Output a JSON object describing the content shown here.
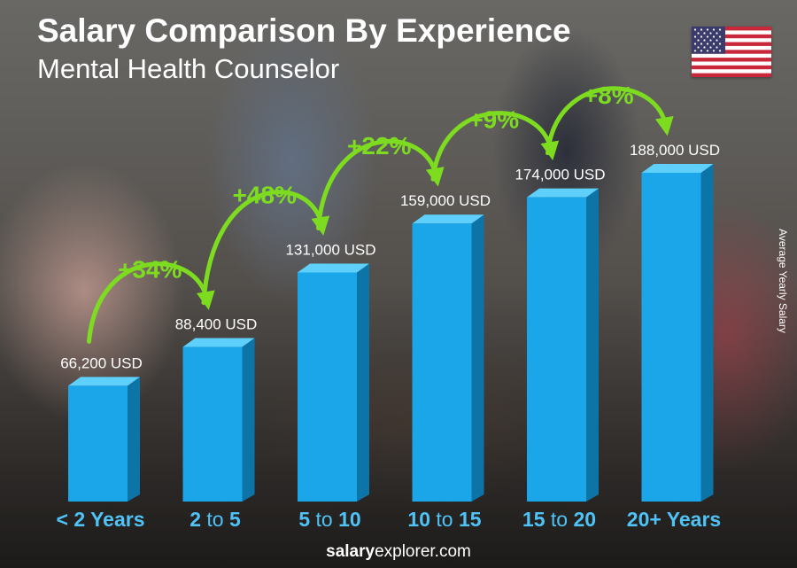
{
  "header": {
    "title": "Salary Comparison By Experience",
    "subtitle": "Mental Health Counselor"
  },
  "side_label": "Average Yearly Salary",
  "footer": {
    "brand_bold": "salary",
    "brand_rest": "explorer.com"
  },
  "flag_icon": "us-flag-icon",
  "colors": {
    "bar_front": "#1aa6e8",
    "bar_side": "#0d74a8",
    "bar_top": "#5fd0fb",
    "increase": "#7ddc20",
    "category": "#4fc3f7",
    "label": "#ffffff"
  },
  "chart_data": {
    "type": "bar",
    "title": "Salary Comparison By Experience",
    "subtitle": "Mental Health Counselor",
    "ylabel": "Average Yearly Salary",
    "categories": [
      {
        "bold": "< 2 Years",
        "mid": "",
        "end": ""
      },
      {
        "bold": "2",
        "mid": " to ",
        "end": "5"
      },
      {
        "bold": "5",
        "mid": " to ",
        "end": "10"
      },
      {
        "bold": "10",
        "mid": " to ",
        "end": "15"
      },
      {
        "bold": "15",
        "mid": " to ",
        "end": "20"
      },
      {
        "bold": "20+ Years",
        "mid": "",
        "end": ""
      }
    ],
    "values": [
      66200,
      88400,
      131000,
      159000,
      174000,
      188000
    ],
    "value_labels": [
      "66,200 USD",
      "88,400 USD",
      "131,000 USD",
      "159,000 USD",
      "174,000 USD",
      "188,000 USD"
    ],
    "increases": [
      "+34%",
      "+48%",
      "+22%",
      "+9%",
      "+8%"
    ],
    "ylim": [
      0,
      188000
    ],
    "grid": false,
    "legend": "none"
  }
}
